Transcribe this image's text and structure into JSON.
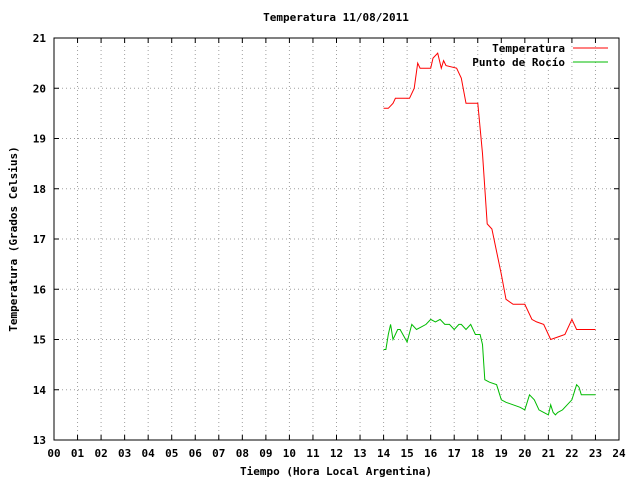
{
  "chart_data": {
    "type": "line",
    "title": "Temperatura 11/08/2011",
    "xlabel": "Tiempo (Hora Local Argentina)",
    "ylabel": "Temperatura (Grados Celsius)",
    "xlim": [
      0,
      24
    ],
    "ylim": [
      13,
      21
    ],
    "x_ticks": [
      "00",
      "01",
      "02",
      "03",
      "04",
      "05",
      "06",
      "07",
      "08",
      "09",
      "10",
      "11",
      "12",
      "13",
      "14",
      "15",
      "16",
      "17",
      "18",
      "19",
      "20",
      "21",
      "22",
      "23",
      "24"
    ],
    "y_ticks": [
      13,
      14,
      15,
      16,
      17,
      18,
      19,
      20,
      21
    ],
    "grid": true,
    "legend_position": "top-right",
    "series": [
      {
        "name": "Temperatura",
        "color": "#ff0000",
        "x": [
          14.0,
          14.2,
          14.4,
          14.5,
          15.1,
          15.3,
          15.45,
          15.55,
          16.0,
          16.1,
          16.3,
          16.45,
          16.55,
          16.65,
          17.1,
          17.3,
          17.5,
          18.0,
          18.2,
          18.4,
          18.6,
          19.0,
          19.2,
          19.5,
          20.0,
          20.3,
          20.5,
          20.8,
          21.1,
          21.4,
          21.7,
          22.0,
          22.2,
          22.4,
          23.0
        ],
        "values": [
          19.6,
          19.6,
          19.7,
          19.8,
          19.8,
          20.0,
          20.5,
          20.4,
          20.4,
          20.6,
          20.7,
          20.4,
          20.55,
          20.45,
          20.4,
          20.2,
          19.7,
          19.7,
          18.7,
          17.3,
          17.2,
          16.3,
          15.8,
          15.7,
          15.7,
          15.4,
          15.35,
          15.3,
          15.0,
          15.05,
          15.1,
          15.4,
          15.2,
          15.2,
          15.2
        ],
        "legend_label": "Temperatura"
      },
      {
        "name": "Punto de Rocío",
        "color": "#00bb00",
        "x": [
          14.0,
          14.1,
          14.2,
          14.3,
          14.4,
          14.6,
          14.7,
          15.0,
          15.2,
          15.4,
          15.6,
          15.8,
          16.0,
          16.2,
          16.4,
          16.6,
          16.8,
          17.0,
          17.2,
          17.3,
          17.5,
          17.7,
          17.9,
          18.1,
          18.2,
          18.3,
          18.5,
          18.8,
          19.0,
          19.2,
          19.5,
          19.8,
          20.0,
          20.2,
          20.4,
          20.6,
          20.8,
          21.0,
          21.1,
          21.2,
          21.3,
          21.4,
          21.6,
          21.8,
          22.0,
          22.2,
          22.3,
          22.4,
          22.6,
          23.0
        ],
        "values": [
          14.8,
          14.8,
          15.1,
          15.3,
          15.0,
          15.2,
          15.2,
          14.95,
          15.3,
          15.2,
          15.25,
          15.3,
          15.4,
          15.35,
          15.4,
          15.3,
          15.3,
          15.2,
          15.3,
          15.3,
          15.2,
          15.3,
          15.1,
          15.1,
          14.9,
          14.2,
          14.15,
          14.1,
          13.8,
          13.75,
          13.7,
          13.65,
          13.6,
          13.9,
          13.8,
          13.6,
          13.55,
          13.5,
          13.7,
          13.55,
          13.5,
          13.55,
          13.6,
          13.7,
          13.8,
          14.1,
          14.05,
          13.9,
          13.9,
          13.9
        ],
        "legend_label": "Punto de Rocío"
      }
    ]
  }
}
